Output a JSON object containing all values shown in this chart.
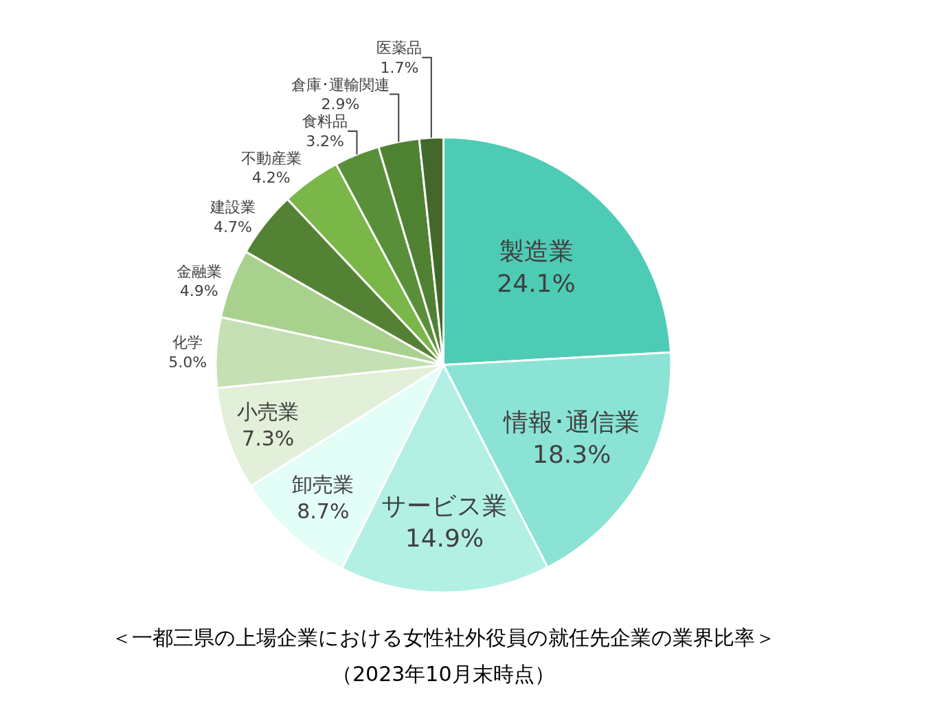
{
  "chart_data": {
    "type": "pie",
    "categories": [
      "製造業",
      "情報･通信業",
      "サービス業",
      "卸売業",
      "小売業",
      "化学",
      "金融業",
      "建設業",
      "不動産業",
      "食料品",
      "倉庫･運輸関連",
      "医薬品"
    ],
    "values": [
      24.1,
      18.3,
      14.9,
      8.7,
      7.3,
      5.0,
      4.9,
      4.7,
      4.2,
      3.2,
      2.9,
      1.7
    ],
    "value_labels": [
      "24.1%",
      "18.3%",
      "14.9%",
      "8.7%",
      "7.3%",
      "5.0%",
      "4.9%",
      "4.7%",
      "4.2%",
      "3.2%",
      "2.9%",
      "1.7%"
    ],
    "colors": [
      "#4ecbb5",
      "#8ae3d4",
      "#b2f0e4",
      "#e3fdf7",
      "#e2efd9",
      "#c5e0b4",
      "#a9d18e",
      "#548235",
      "#7ab648",
      "#5a8f3a",
      "#4e8232",
      "#43682b"
    ],
    "legend": false,
    "annotations": [
      "＜一都三県の上場企業における女性社外役員の就任先企業の業界比率＞",
      "（2023年10月末時点）"
    ]
  }
}
